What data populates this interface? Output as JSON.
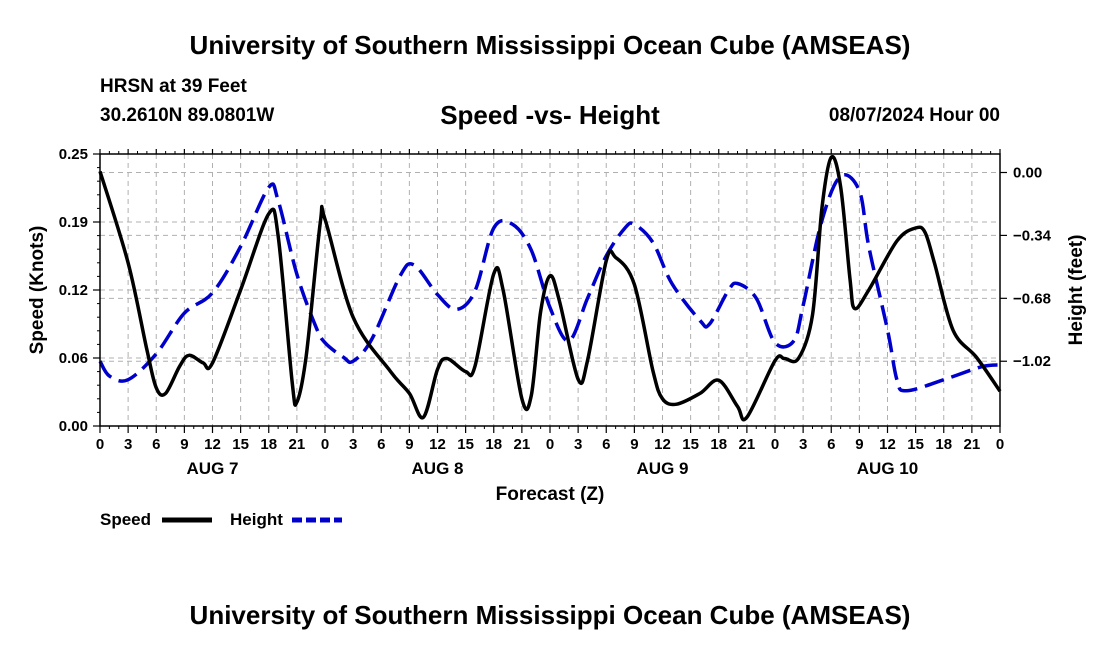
{
  "header": {
    "title": "University of Southern Mississippi Ocean Cube (AMSEAS)",
    "station": "HRSN at 39 Feet",
    "coords": "30.2610N  89.0801W",
    "chart_title": "Speed -vs- Height",
    "forecast_time": "08/07/2024 Hour 00"
  },
  "footer": {
    "title": "University of Southern Mississippi Ocean Cube (AMSEAS)"
  },
  "legend": {
    "speed_label": "Speed",
    "height_label": "Height"
  },
  "colors": {
    "speed": "#000000",
    "height": "#0000cc",
    "grid": "#b0b0b0"
  },
  "chart_data": {
    "type": "line",
    "title": "Speed -vs- Height",
    "xlabel": "Forecast (Z)",
    "ylabel": "Speed (Knots)",
    "y2label": "Height (feet)",
    "xlim": [
      0,
      96
    ],
    "ylim": [
      0,
      0.25
    ],
    "y2lim": [
      -1.37,
      0.1
    ],
    "x_ticks": [
      0,
      3,
      6,
      9,
      12,
      15,
      18,
      21,
      24,
      27,
      30,
      33,
      36,
      39,
      42,
      45,
      48,
      51,
      54,
      57,
      60,
      63,
      66,
      69,
      72,
      75,
      78,
      81,
      84,
      87,
      90,
      93,
      96
    ],
    "x_tick_labels": [
      "0",
      "3",
      "6",
      "9",
      "12",
      "15",
      "18",
      "21",
      "0",
      "3",
      "6",
      "9",
      "12",
      "15",
      "18",
      "21",
      "0",
      "3",
      "6",
      "9",
      "12",
      "15",
      "18",
      "21",
      "0",
      "3",
      "6",
      "9",
      "12",
      "15",
      "18",
      "21",
      "0"
    ],
    "date_labels": [
      {
        "x": 12,
        "label": "AUG 7"
      },
      {
        "x": 36,
        "label": "AUG 8"
      },
      {
        "x": 60,
        "label": "AUG 9"
      },
      {
        "x": 84,
        "label": "AUG 10"
      }
    ],
    "y_ticks": [
      0.0,
      0.0625,
      0.125,
      0.1875,
      0.25
    ],
    "y_tick_labels": [
      "0.00",
      "0.06",
      "0.12",
      "0.19",
      "0.25"
    ],
    "y2_ticks": [
      0.0,
      -0.34,
      -0.68,
      -1.02
    ],
    "y2_tick_labels": [
      "0.00",
      "−0.34",
      "−0.68",
      "−1.02"
    ],
    "series": [
      {
        "name": "Speed",
        "axis": "left",
        "style": "solid",
        "points": [
          [
            0,
            0.234
          ],
          [
            3,
            0.15
          ],
          [
            5,
            0.07
          ],
          [
            6,
            0.035
          ],
          [
            7,
            0.03
          ],
          [
            8.5,
            0.055
          ],
          [
            9.5,
            0.065
          ],
          [
            11,
            0.058
          ],
          [
            12,
            0.058
          ],
          [
            15,
            0.125
          ],
          [
            18,
            0.195
          ],
          [
            19,
            0.175
          ],
          [
            20.5,
            0.04
          ],
          [
            21,
            0.022
          ],
          [
            22,
            0.065
          ],
          [
            23.5,
            0.187
          ],
          [
            24,
            0.19
          ],
          [
            27,
            0.1
          ],
          [
            31,
            0.05
          ],
          [
            33,
            0.03
          ],
          [
            34.5,
            0.008
          ],
          [
            36,
            0.052
          ],
          [
            37,
            0.062
          ],
          [
            39,
            0.05
          ],
          [
            40,
            0.055
          ],
          [
            42,
            0.14
          ],
          [
            43,
            0.125
          ],
          [
            45,
            0.025
          ],
          [
            46,
            0.028
          ],
          [
            47,
            0.105
          ],
          [
            48,
            0.138
          ],
          [
            49,
            0.115
          ],
          [
            51,
            0.043
          ],
          [
            52,
            0.06
          ],
          [
            54,
            0.152
          ],
          [
            55,
            0.155
          ],
          [
            57,
            0.13
          ],
          [
            59,
            0.05
          ],
          [
            60,
            0.025
          ],
          [
            61.5,
            0.02
          ],
          [
            64,
            0.03
          ],
          [
            66,
            0.042
          ],
          [
            68,
            0.018
          ],
          [
            69,
            0.008
          ],
          [
            72,
            0.06
          ],
          [
            73,
            0.062
          ],
          [
            74.5,
            0.062
          ],
          [
            76,
            0.102
          ],
          [
            77,
            0.2
          ],
          [
            78,
            0.247
          ],
          [
            79,
            0.22
          ],
          [
            80,
            0.135
          ],
          [
            80.5,
            0.108
          ],
          [
            82,
            0.125
          ],
          [
            85,
            0.17
          ],
          [
            87,
            0.182
          ],
          [
            88,
            0.178
          ],
          [
            89,
            0.15
          ],
          [
            91,
            0.088
          ],
          [
            93.5,
            0.063
          ],
          [
            96,
            0.032
          ]
        ]
      },
      {
        "name": "Height",
        "axis": "right",
        "style": "dashed",
        "points": [
          [
            0,
            -1.02
          ],
          [
            1,
            -1.1
          ],
          [
            3,
            -1.12
          ],
          [
            6,
            -0.98
          ],
          [
            9,
            -0.76
          ],
          [
            12,
            -0.65
          ],
          [
            15,
            -0.4
          ],
          [
            18,
            -0.08
          ],
          [
            19,
            -0.15
          ],
          [
            21,
            -0.55
          ],
          [
            23,
            -0.83
          ],
          [
            24,
            -0.92
          ],
          [
            26,
            -1.0
          ],
          [
            27,
            -1.02
          ],
          [
            29,
            -0.9
          ],
          [
            32,
            -0.56
          ],
          [
            33.5,
            -0.5
          ],
          [
            36,
            -0.66
          ],
          [
            38,
            -0.74
          ],
          [
            40,
            -0.64
          ],
          [
            42,
            -0.3
          ],
          [
            44,
            -0.28
          ],
          [
            46,
            -0.42
          ],
          [
            48,
            -0.73
          ],
          [
            50,
            -0.91
          ],
          [
            52,
            -0.68
          ],
          [
            54,
            -0.45
          ],
          [
            56,
            -0.3
          ],
          [
            57,
            -0.28
          ],
          [
            59,
            -0.38
          ],
          [
            61,
            -0.6
          ],
          [
            64,
            -0.8
          ],
          [
            65,
            -0.82
          ],
          [
            67,
            -0.64
          ],
          [
            68,
            -0.6
          ],
          [
            70,
            -0.68
          ],
          [
            72,
            -0.92
          ],
          [
            74,
            -0.91
          ],
          [
            75,
            -0.72
          ],
          [
            77,
            -0.26
          ],
          [
            79,
            -0.02
          ],
          [
            81,
            -0.1
          ],
          [
            82,
            -0.4
          ],
          [
            84,
            -0.85
          ],
          [
            85,
            -1.12
          ],
          [
            86,
            -1.18
          ],
          [
            90,
            -1.12
          ],
          [
            94,
            -1.05
          ],
          [
            96,
            -1.04
          ]
        ]
      }
    ]
  }
}
